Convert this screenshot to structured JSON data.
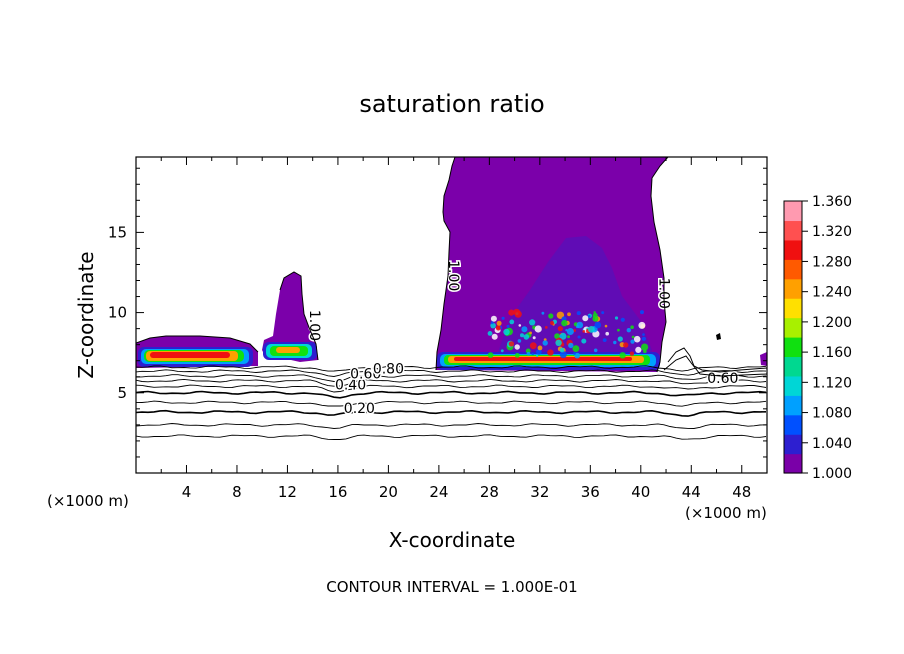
{
  "chart_data": {
    "type": "heatmap",
    "title": "saturation ratio",
    "xlabel": "X-coordinate",
    "ylabel": "Z-coordinate",
    "x_unit_left": "(×1000 m)",
    "x_unit_right": "(×1000 m)",
    "xlim": [
      0,
      50
    ],
    "ylim": [
      0,
      19.7
    ],
    "x_ticks": [
      4,
      8,
      12,
      16,
      20,
      24,
      28,
      32,
      36,
      40,
      44,
      48
    ],
    "y_ticks": [
      5,
      10,
      15
    ],
    "footer": "CONTOUR INTERVAL = 1.000E-01",
    "colorbar": {
      "ticks": [
        "1.360",
        "1.320",
        "1.280",
        "1.240",
        "1.200",
        "1.160",
        "1.120",
        "1.080",
        "1.040",
        "1.000"
      ],
      "min": 1.0,
      "max": 1.36,
      "colors": [
        "#7a00a8",
        "#2d1fd0",
        "#0050ff",
        "#00a0ff",
        "#00d6d6",
        "#00d890",
        "#10e010",
        "#a8f000",
        "#ffe000",
        "#ffa000",
        "#ff5a00",
        "#f01010",
        "#ff5050",
        "#ff9ab0"
      ]
    },
    "contour_labels": [
      {
        "text": "0.20",
        "x": 17.7,
        "z": 3.75
      },
      {
        "text": "0.40",
        "x": 17.0,
        "z": 5.2
      },
      {
        "text": "0.60",
        "x": 18.2,
        "z": 5.9
      },
      {
        "text": "0.80",
        "x": 20.0,
        "z": 6.2
      },
      {
        "text": "0.60",
        "x": 46.5,
        "z": 5.6
      },
      {
        "text": "1.00",
        "x": 13.8,
        "z": 9.2
      },
      {
        "text": "1.00",
        "x": 24.8,
        "z": 12.3
      },
      {
        "text": "1.00",
        "x": 41.5,
        "z": 11.2
      }
    ],
    "contour_lines_z": [
      2.3,
      3.0,
      3.8,
      4.4,
      5.0,
      5.4,
      5.75,
      6.05,
      6.35,
      6.6
    ]
  }
}
